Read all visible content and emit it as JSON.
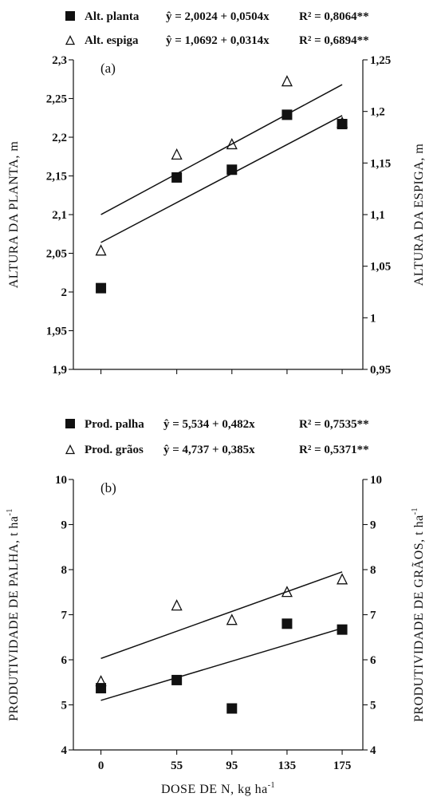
{
  "chart_data": [
    {
      "type": "scatter",
      "panel_label": "(a)",
      "x": [
        0,
        55,
        95,
        135,
        175
      ],
      "xlim": [
        -20,
        190
      ],
      "ylabel_left": "ALTURA DA PLANTA, m",
      "ylabel_right": "ALTURA DA ESPIGA, m",
      "ylim_left": [
        1.9,
        2.3
      ],
      "ylim_right": [
        0.95,
        1.25
      ],
      "yticks_left": [
        "1,9",
        "1,95",
        "2",
        "2,05",
        "2,1",
        "2,15",
        "2,2",
        "2,25",
        "2,3"
      ],
      "yticks_right": [
        "0,95",
        "1",
        "1,05",
        "1,1",
        "1,15",
        "1,2",
        "1,25"
      ],
      "series": [
        {
          "name": "Alt. planta",
          "marker": "filled-square",
          "axis": "left",
          "values": [
            2.005,
            2.148,
            2.158,
            2.229,
            2.217
          ],
          "equation": "ŷ = 2,0024 + 0,0504x",
          "r2": "R² = 0,8064**",
          "fit_endpoints": [
            2.1,
            2.268
          ]
        },
        {
          "name": "Alt. espiga",
          "marker": "open-triangle",
          "axis": "right",
          "values": [
            1.065,
            1.158,
            1.168,
            1.229,
            1.189
          ],
          "equation": "ŷ = 1,0692 + 0,0314x",
          "r2": "R² = 0,6894**",
          "fit_endpoints": [
            1.073,
            1.196
          ]
        }
      ]
    },
    {
      "type": "scatter",
      "panel_label": "(b)",
      "x": [
        0,
        55,
        95,
        135,
        175
      ],
      "xlim": [
        -20,
        190
      ],
      "xticks": [
        "0",
        "55",
        "95",
        "135",
        "175"
      ],
      "xlabel": "DOSE DE N, kg ha",
      "xlabel_sup": "-1",
      "ylabel_left": "PRODUTIVIDADE DE PALHA, t ha",
      "ylabel_right": "PRODUTIVIDADE DE GRÃOS, t ha",
      "ylabel_sup": "-1",
      "ylim_left": [
        4,
        10
      ],
      "ylim_right": [
        4,
        10
      ],
      "yticks_left": [
        "4",
        "5",
        "6",
        "7",
        "8",
        "9",
        "10"
      ],
      "yticks_right": [
        "4",
        "5",
        "6",
        "7",
        "8",
        "9",
        "10"
      ],
      "series": [
        {
          "name": "Prod. palha",
          "marker": "filled-square",
          "axis": "left",
          "values": [
            5.37,
            5.55,
            4.92,
            6.8,
            6.67
          ],
          "equation": "ŷ = 5,534 + 0,482x",
          "r2": "R² = 0,7535**",
          "fit_endpoints": [
            5.1,
            6.7
          ]
        },
        {
          "name": "Prod. grãos",
          "marker": "open-triangle",
          "axis": "right",
          "values": [
            5.52,
            7.2,
            6.88,
            7.5,
            7.78
          ],
          "equation": "ŷ = 4,737 + 0,385x",
          "r2": "R² = 0,5371**",
          "fit_endpoints": [
            6.03,
            7.95
          ]
        }
      ]
    }
  ]
}
